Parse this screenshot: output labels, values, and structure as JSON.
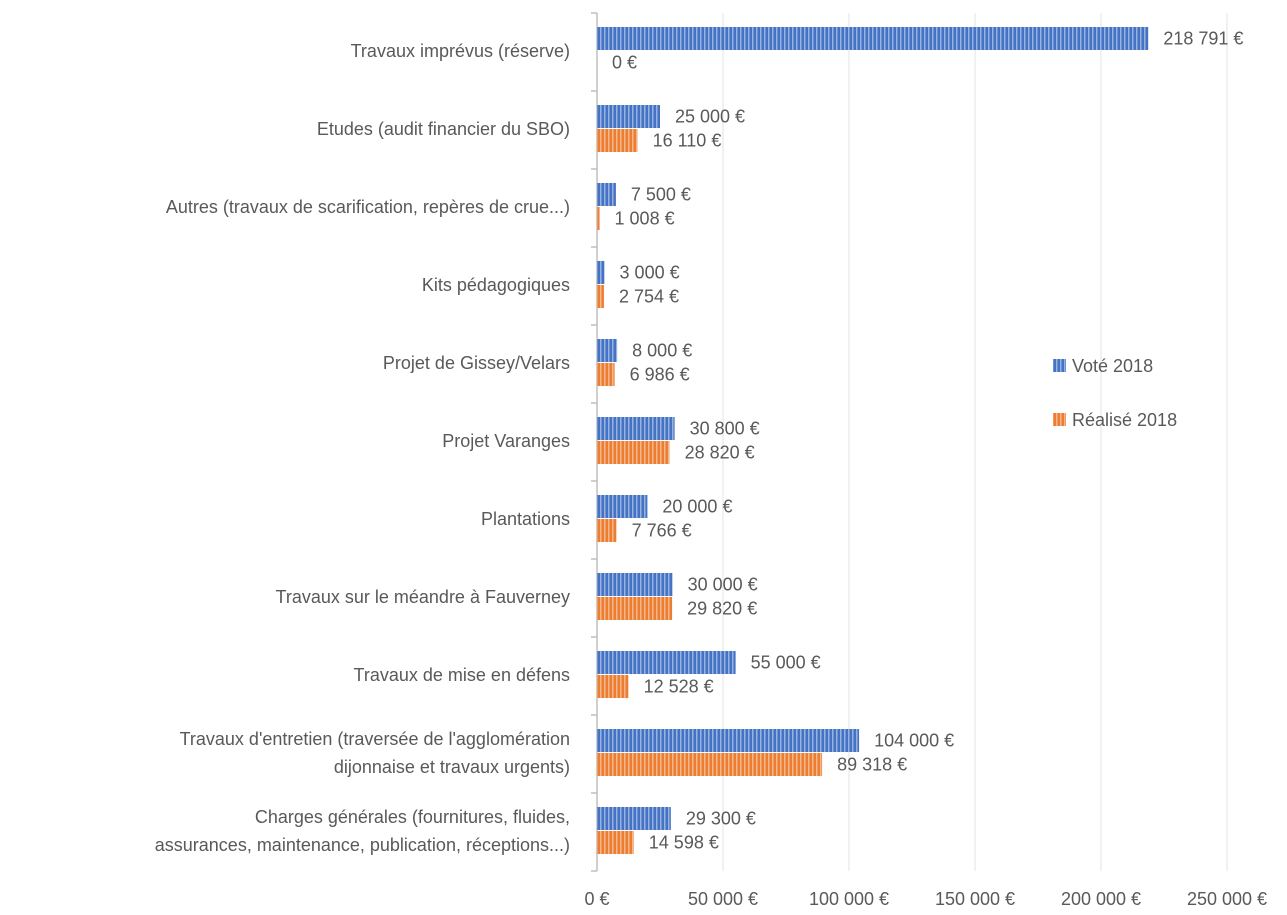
{
  "chart_data": {
    "type": "bar",
    "orientation": "horizontal",
    "categories": [
      "Travaux imprévus (réserve)",
      "Etudes (audit financier du SBO)",
      "Autres (travaux de scarification, repères de crue...)",
      "Kits pédagogiques",
      "Projet de Gissey/Velars",
      "Projet Varanges",
      "Plantations",
      "Travaux sur le méandre à Fauverney",
      "Travaux de mise en défens",
      "Travaux d'entretien (traversée de l'agglomération\ndijonnaise et travaux urgents)",
      "Charges générales (fournitures, fluides,\nassurances, maintenance, publication, réceptions...)"
    ],
    "series": [
      {
        "name": "Voté 2018",
        "color": "#4472c4",
        "values": [
          218791,
          25000,
          7500,
          3000,
          8000,
          30800,
          20000,
          30000,
          55000,
          104000,
          29300
        ],
        "value_labels": [
          "218 791 €",
          "25 000 €",
          "7 500 €",
          "3 000 €",
          "8 000 €",
          "30 800 €",
          "20 000 €",
          "30 000 €",
          "55 000 €",
          "104 000 €",
          "29 300 €"
        ]
      },
      {
        "name": "Réalisé 2018",
        "color": "#ed7d31",
        "values": [
          0,
          16110,
          1008,
          2754,
          6986,
          28820,
          7766,
          29820,
          12528,
          89318,
          14598
        ],
        "value_labels": [
          "0 €",
          "16 110 €",
          "1 008 €",
          "2 754 €",
          "6 986 €",
          "28 820 €",
          "7 766 €",
          "29 820 €",
          "12 528 €",
          "89 318 €",
          "14 598 €"
        ]
      }
    ],
    "xlim": [
      0,
      250000
    ],
    "xticks": [
      {
        "value": 0,
        "label": "0 €"
      },
      {
        "value": 50000,
        "label": "50 000 €"
      },
      {
        "value": 100000,
        "label": "100 000 €"
      },
      {
        "value": 150000,
        "label": "150 000 €"
      },
      {
        "value": 200000,
        "label": "200 000 €"
      },
      {
        "value": 250000,
        "label": "250 000 €"
      }
    ],
    "grid": true,
    "legend": "right"
  }
}
